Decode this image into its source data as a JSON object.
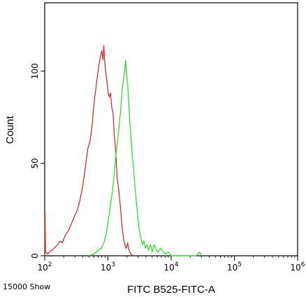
{
  "chart_data": {
    "type": "line",
    "title": "",
    "xlabel": "FITC B525-FITC-A",
    "ylabel": "Count",
    "x_scale": "log",
    "xlim": [
      100,
      1000000
    ],
    "ylim": [
      0,
      137
    ],
    "grid": false,
    "y_ticks": [
      0,
      50,
      100
    ],
    "x_ticks": [
      {
        "value": 100,
        "base": "10",
        "exp": "2"
      },
      {
        "value": 1000,
        "base": "10",
        "exp": "3"
      },
      {
        "value": 10000,
        "base": "10",
        "exp": "4"
      },
      {
        "value": 100000,
        "base": "10",
        "exp": "5"
      },
      {
        "value": 1000000,
        "base": "10",
        "exp": "6"
      }
    ],
    "series": [
      {
        "color": "#d42020",
        "points": [
          [
            100,
            0
          ],
          [
            101,
            23
          ],
          [
            103,
            2
          ],
          [
            110,
            1
          ],
          [
            120,
            2
          ],
          [
            140,
            4
          ],
          [
            160,
            6
          ],
          [
            175,
            8
          ],
          [
            190,
            7
          ],
          [
            210,
            11
          ],
          [
            240,
            14
          ],
          [
            270,
            18
          ],
          [
            300,
            22
          ],
          [
            330,
            25
          ],
          [
            360,
            30
          ],
          [
            400,
            38
          ],
          [
            440,
            48
          ],
          [
            480,
            58
          ],
          [
            520,
            62
          ],
          [
            560,
            70
          ],
          [
            600,
            82
          ],
          [
            640,
            90
          ],
          [
            680,
            97
          ],
          [
            720,
            103
          ],
          [
            760,
            108
          ],
          [
            800,
            111
          ],
          [
            830,
            106
          ],
          [
            860,
            114
          ],
          [
            890,
            105
          ],
          [
            920,
            100
          ],
          [
            960,
            95
          ],
          [
            1000,
            89
          ],
          [
            1050,
            86
          ],
          [
            1100,
            88
          ],
          [
            1150,
            80
          ],
          [
            1200,
            78
          ],
          [
            1260,
            65
          ],
          [
            1320,
            58
          ],
          [
            1400,
            42
          ],
          [
            1480,
            36
          ],
          [
            1560,
            28
          ],
          [
            1650,
            18
          ],
          [
            1750,
            10
          ],
          [
            1850,
            6
          ],
          [
            1950,
            4
          ],
          [
            2050,
            7
          ],
          [
            2150,
            3
          ],
          [
            2300,
            1
          ],
          [
            2500,
            0
          ]
        ]
      },
      {
        "color": "#22dd22",
        "points": [
          [
            500,
            0
          ],
          [
            600,
            1
          ],
          [
            700,
            3
          ],
          [
            780,
            4
          ],
          [
            860,
            7
          ],
          [
            940,
            12
          ],
          [
            1020,
            20
          ],
          [
            1100,
            28
          ],
          [
            1180,
            35
          ],
          [
            1260,
            45
          ],
          [
            1340,
            55
          ],
          [
            1420,
            62
          ],
          [
            1500,
            70
          ],
          [
            1580,
            78
          ],
          [
            1660,
            88
          ],
          [
            1740,
            94
          ],
          [
            1820,
            99
          ],
          [
            1900,
            106
          ],
          [
            1980,
            98
          ],
          [
            2060,
            92
          ],
          [
            2140,
            82
          ],
          [
            2220,
            72
          ],
          [
            2300,
            65
          ],
          [
            2420,
            55
          ],
          [
            2540,
            48
          ],
          [
            2660,
            38
          ],
          [
            2800,
            30
          ],
          [
            2950,
            22
          ],
          [
            3100,
            15
          ],
          [
            3300,
            10
          ],
          [
            3500,
            6
          ],
          [
            3700,
            8
          ],
          [
            3900,
            4
          ],
          [
            4100,
            6
          ],
          [
            4400,
            3
          ],
          [
            4700,
            6
          ],
          [
            5000,
            2
          ],
          [
            5400,
            6
          ],
          [
            5800,
            3
          ],
          [
            6200,
            2
          ],
          [
            6800,
            4
          ],
          [
            7500,
            2
          ],
          [
            8200,
            1
          ],
          [
            9000,
            2
          ],
          [
            10000,
            0
          ],
          [
            25000,
            0
          ],
          [
            28000,
            2
          ],
          [
            30000,
            0
          ]
        ]
      }
    ]
  },
  "footer": {
    "left_text": "15000 Show"
  }
}
